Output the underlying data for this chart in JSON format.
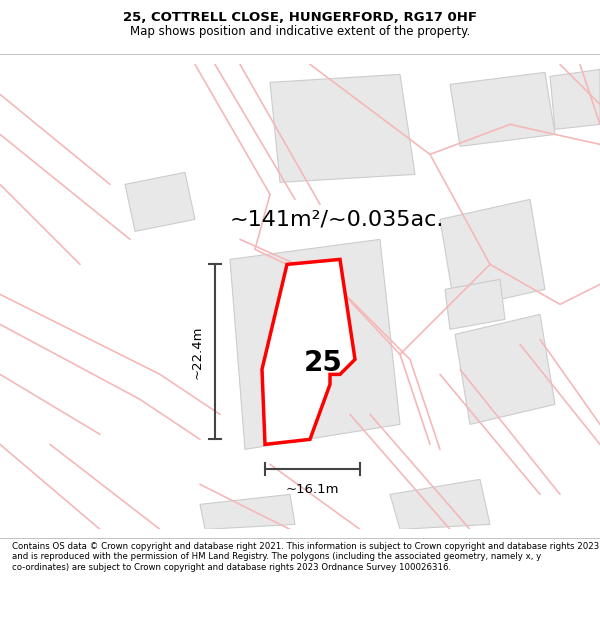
{
  "title": "25, COTTRELL CLOSE, HUNGERFORD, RG17 0HF",
  "subtitle": "Map shows position and indicative extent of the property.",
  "area_text": "~141m²/~0.035ac.",
  "width_text": "~16.1m",
  "height_text": "~22.4m",
  "plot_number": "25",
  "footer": "Contains OS data © Crown copyright and database right 2021. This information is subject to Crown copyright and database rights 2023 and is reproduced with the permission of HM Land Registry. The polygons (including the associated geometry, namely x, y co-ordinates) are subject to Crown copyright and database rights 2023 Ordnance Survey 100026316.",
  "bg_color": "#ffffff",
  "map_bg": "#ffffff",
  "plot_color": "#ff0000",
  "plot_fill": "#ffffff",
  "road_color": "#f5b8b8",
  "building_color": "#e8e8e8",
  "building_edge": "#cccccc",
  "dim_color": "#444444",
  "title_fontsize": 9.5,
  "subtitle_fontsize": 8.5,
  "area_fontsize": 16,
  "footer_fontsize": 6.2
}
